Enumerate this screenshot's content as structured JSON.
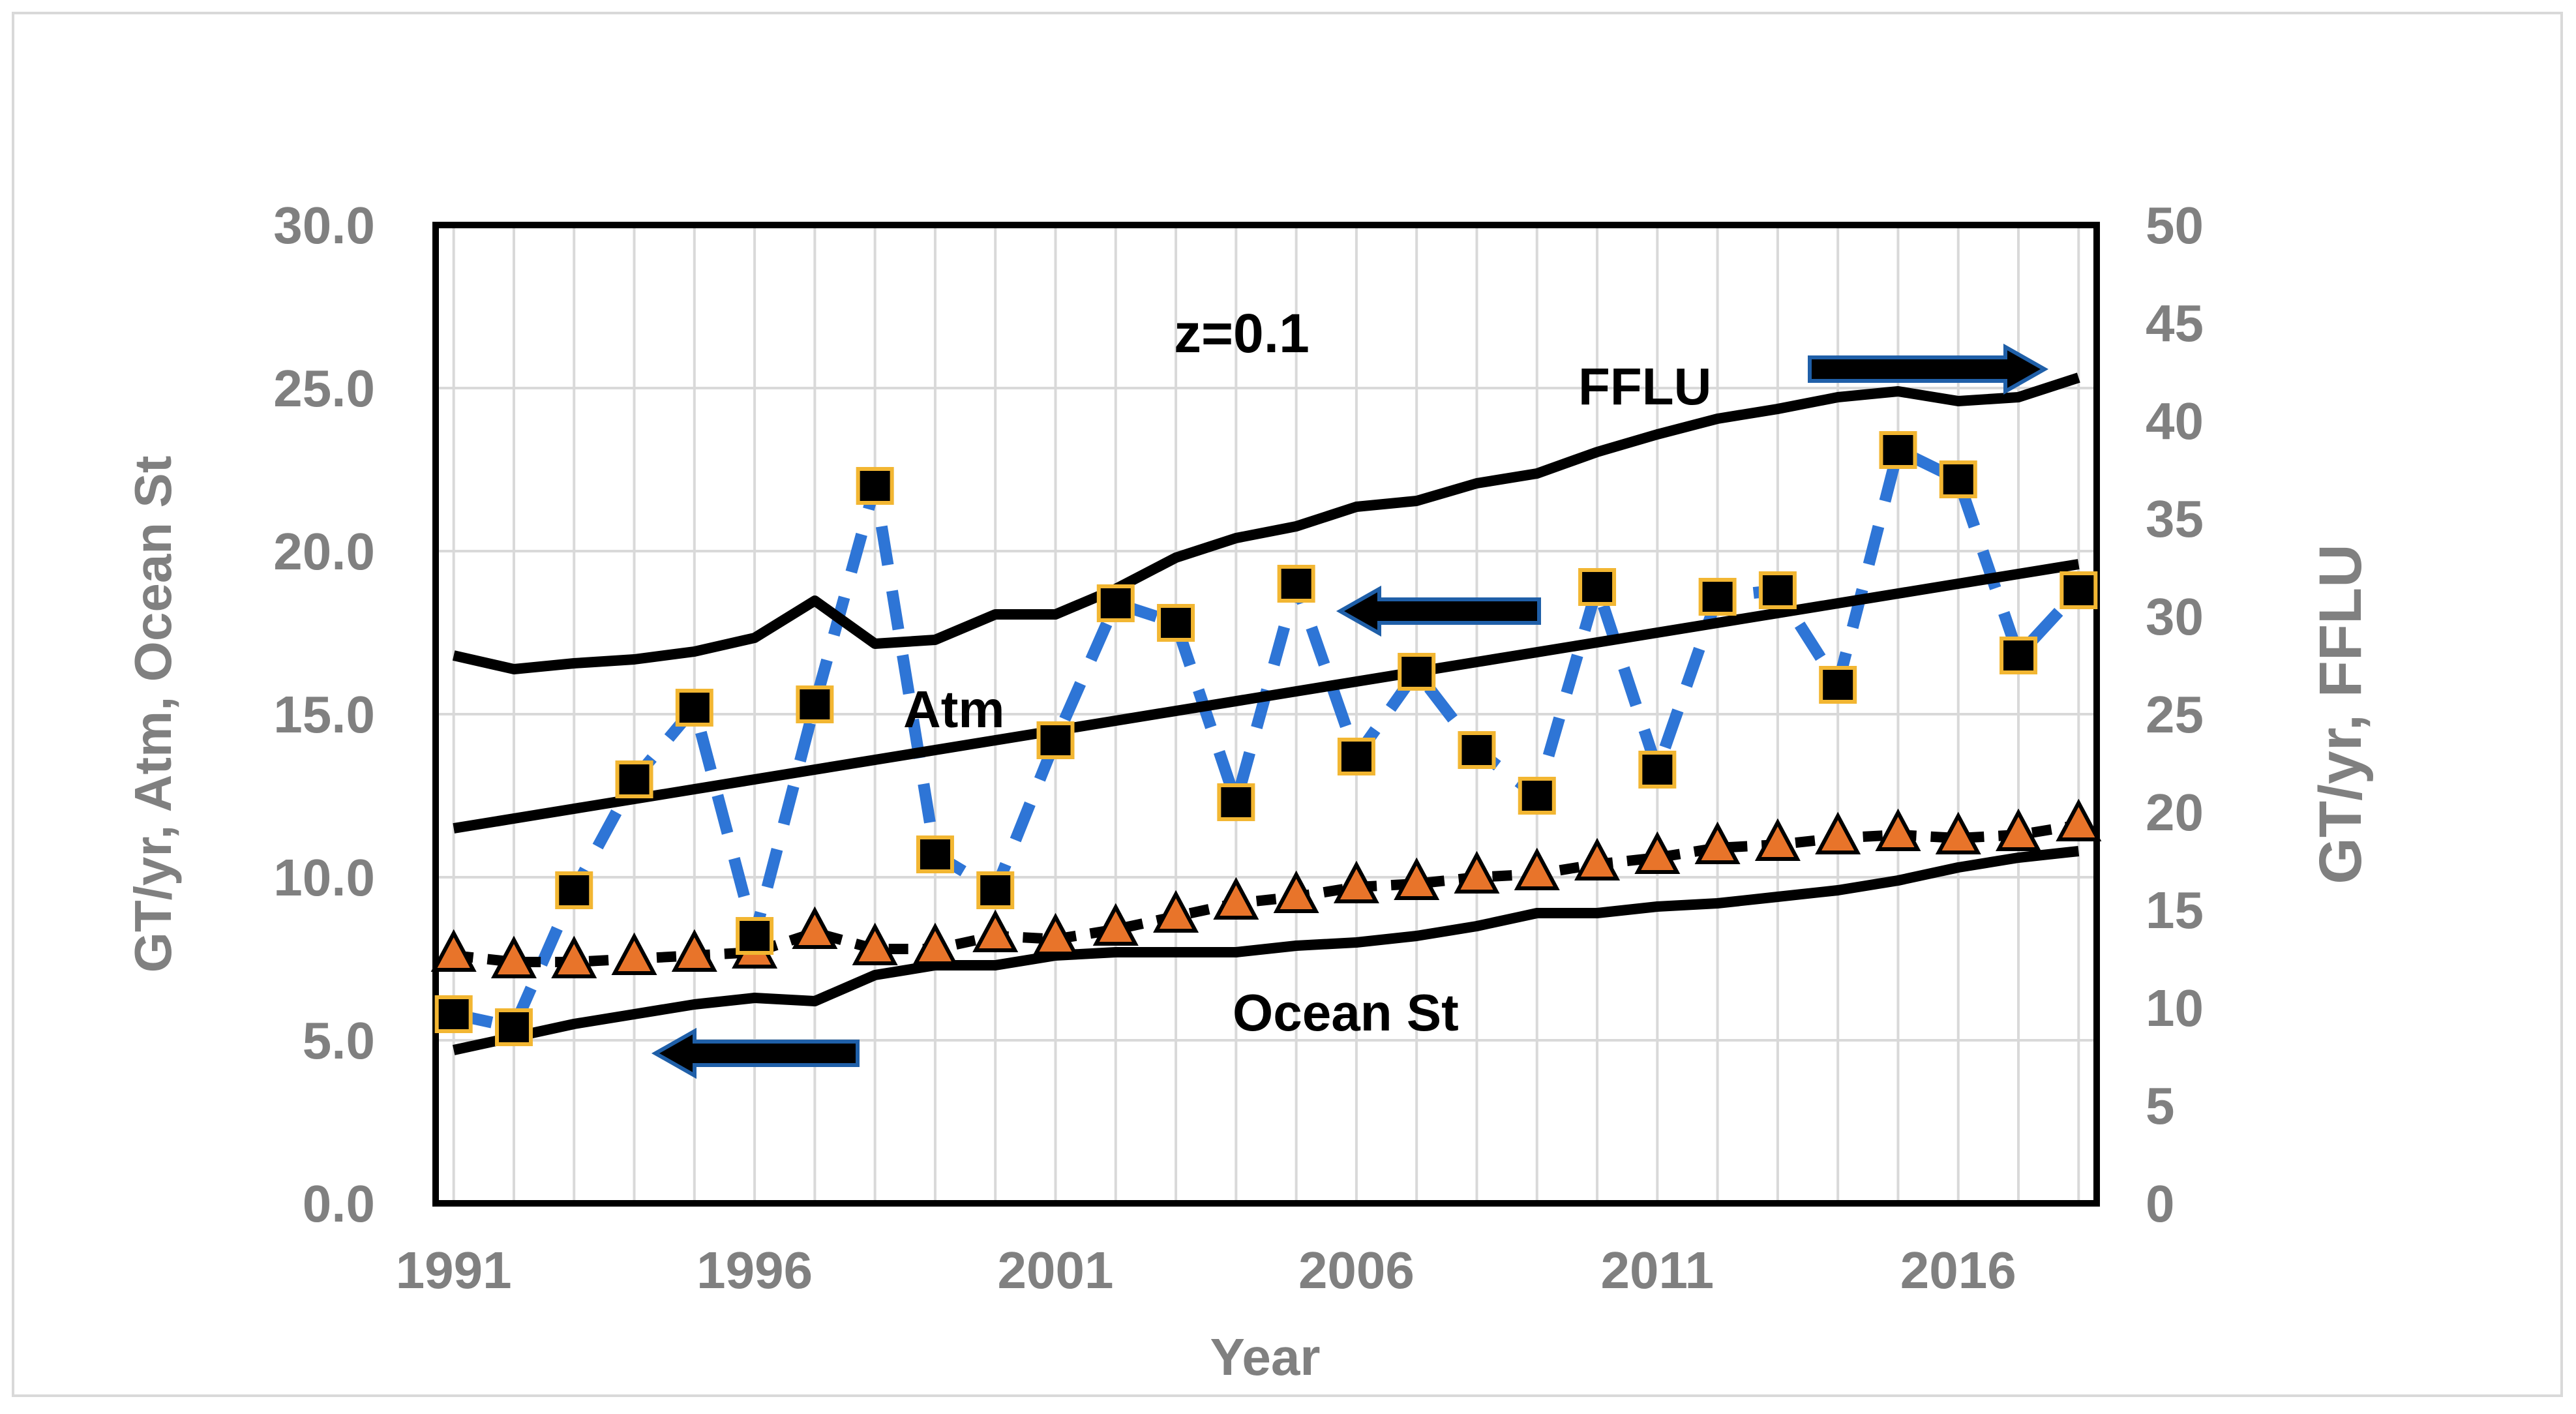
{
  "chart_data": {
    "type": "line",
    "xlabel": "Year",
    "ylabel_left": "GT/yr, Atm, Ocean St",
    "ylabel_right": "GT/yr, FFLU",
    "annotation_z": "z=0.1",
    "x_ticks": [
      "1991",
      "1996",
      "2001",
      "2006",
      "2011",
      "2016"
    ],
    "y_left_ticks": [
      "0.0",
      "5.0",
      "10.0",
      "15.0",
      "20.0",
      "25.0",
      "30.0"
    ],
    "y_right_ticks": [
      "0",
      "5",
      "10",
      "15",
      "20",
      "25",
      "30",
      "35",
      "40",
      "45",
      "50"
    ],
    "xlim": [
      1990.7,
      2018.3
    ],
    "ylim_left": [
      0,
      30
    ],
    "ylim_right": [
      0,
      50
    ],
    "grid": true,
    "x": [
      1991,
      1992,
      1993,
      1994,
      1995,
      1996,
      1997,
      1998,
      1999,
      2000,
      2001,
      2002,
      2003,
      2004,
      2005,
      2006,
      2007,
      2008,
      2009,
      2010,
      2011,
      2012,
      2013,
      2014,
      2015,
      2016,
      2017,
      2018
    ],
    "series": [
      {
        "name": "FFLU",
        "label": "FFLU",
        "axis": "right",
        "style": "solid",
        "values": [
          28.0,
          27.3,
          27.6,
          27.8,
          28.2,
          28.9,
          30.8,
          28.6,
          28.8,
          30.1,
          30.1,
          31.4,
          33.0,
          34.0,
          34.6,
          35.6,
          35.9,
          36.8,
          37.3,
          38.4,
          39.3,
          40.1,
          40.6,
          41.2,
          41.5,
          41.0,
          41.2,
          42.2
        ]
      },
      {
        "name": "Atm",
        "label": "Atm",
        "axis": "left",
        "style": "solid",
        "values": [
          11.5,
          11.8,
          12.1,
          12.4,
          12.7,
          13.0,
          13.3,
          13.6,
          13.9,
          14.2,
          14.5,
          14.8,
          15.1,
          15.4,
          15.7,
          16.0,
          16.3,
          16.6,
          16.9,
          17.2,
          17.5,
          17.8,
          18.1,
          18.4,
          18.7,
          19.0,
          19.3,
          19.6
        ]
      },
      {
        "name": "Ocean St",
        "label": "Ocean St",
        "axis": "left",
        "style": "solid",
        "values": [
          4.7,
          5.1,
          5.5,
          5.8,
          6.1,
          6.3,
          6.2,
          7.0,
          7.3,
          7.3,
          7.6,
          7.7,
          7.7,
          7.7,
          7.9,
          8.0,
          8.2,
          8.5,
          8.9,
          8.9,
          9.1,
          9.2,
          9.4,
          9.6,
          9.9,
          10.3,
          10.6,
          10.8
        ]
      },
      {
        "name": "Squares",
        "label": "",
        "axis": "left",
        "style": "dashed-blue-square-markers",
        "values": [
          5.8,
          5.4,
          9.6,
          13.0,
          15.2,
          8.2,
          15.3,
          22.0,
          10.7,
          9.6,
          14.2,
          18.4,
          17.8,
          12.3,
          19.0,
          13.7,
          16.3,
          13.9,
          12.5,
          18.9,
          13.3,
          18.6,
          18.8,
          15.9,
          23.1,
          22.2,
          16.8,
          18.8
        ]
      },
      {
        "name": "Triangles",
        "label": "",
        "axis": "left",
        "style": "dotted-triangle-markers",
        "values": [
          7.6,
          7.4,
          7.4,
          7.5,
          7.6,
          7.7,
          8.3,
          7.8,
          7.8,
          8.2,
          8.1,
          8.4,
          8.8,
          9.2,
          9.4,
          9.7,
          9.8,
          10.0,
          10.1,
          10.4,
          10.6,
          10.9,
          11.0,
          11.2,
          11.3,
          11.2,
          11.3,
          11.6
        ]
      }
    ],
    "arrows": [
      {
        "target": "FFLU",
        "direction": "right"
      },
      {
        "target": "Atm",
        "direction": "left"
      },
      {
        "target": "Ocean St",
        "direction": "left"
      }
    ]
  },
  "colors": {
    "axis": "#000000",
    "grid": "#d9d9d9",
    "tick_text": "#808080",
    "dashed_line": "#2e75d6",
    "square_fill": "#000000",
    "square_edge": "#f2b632",
    "triangle_fill": "#e8742a",
    "triangle_edge": "#000000",
    "arrow_fill": "#000000",
    "arrow_edge": "#1f5fa8",
    "frame": "#d9d9d9"
  }
}
